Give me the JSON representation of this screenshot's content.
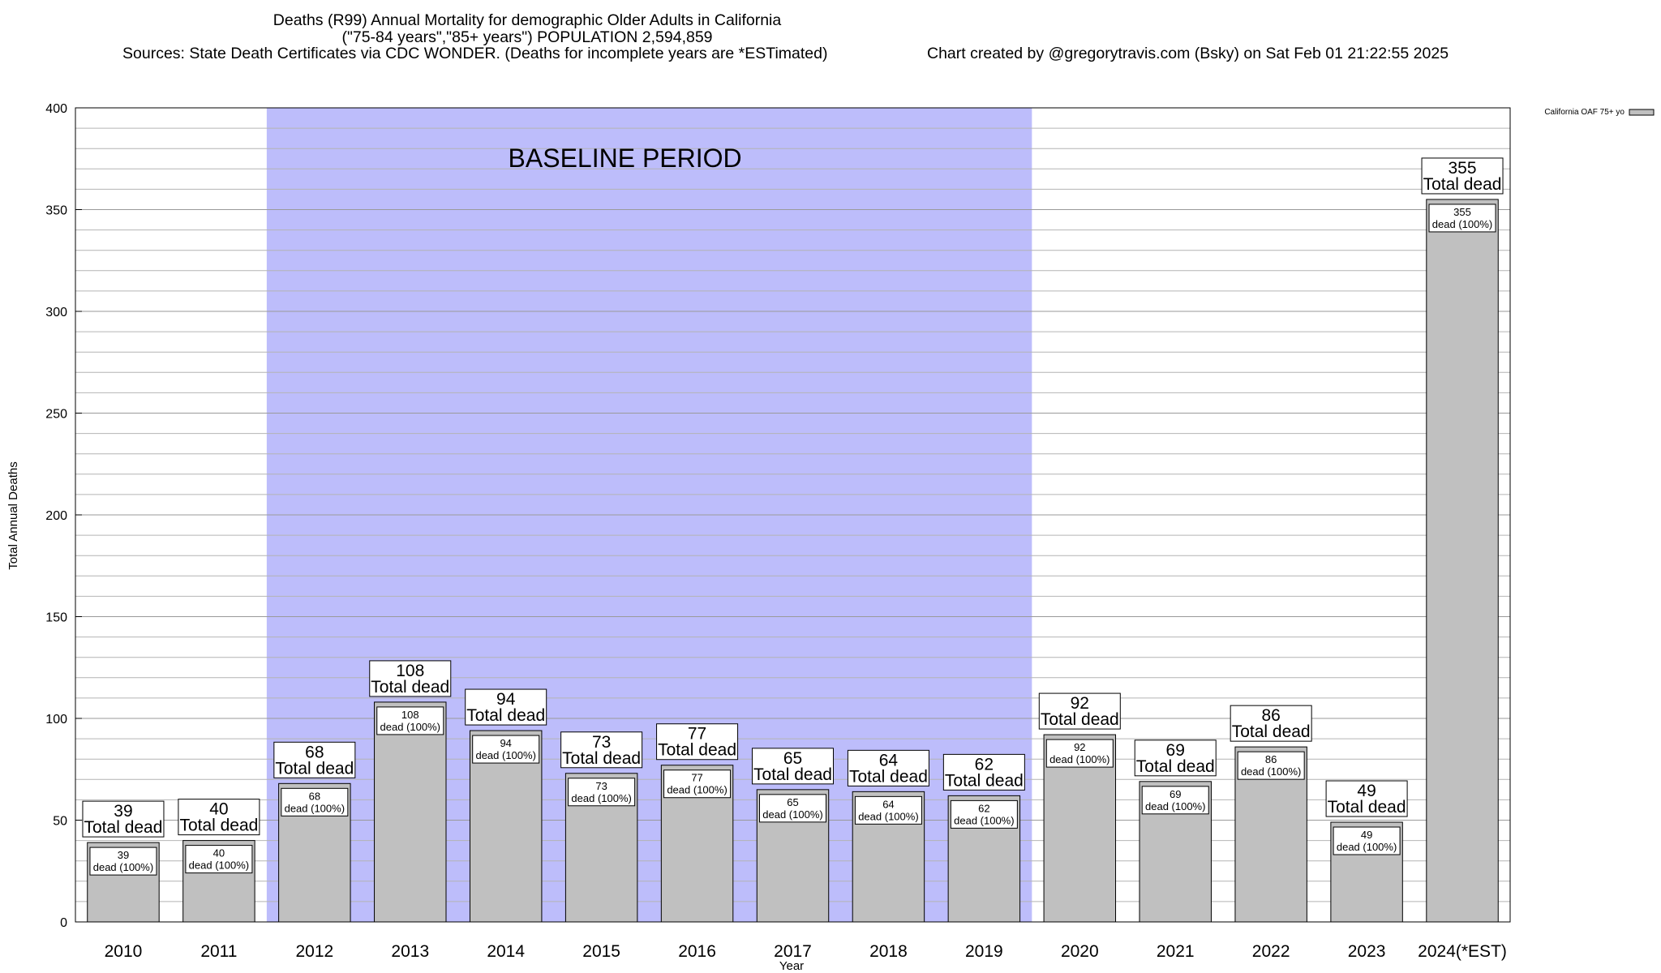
{
  "chart_data": {
    "type": "bar",
    "title_lines": [
      "Deaths (R99) Annual Mortality for demographic Older Adults in California",
      "(\"75-84 years\",\"85+ years\") POPULATION 2,594,859"
    ],
    "sources": "Sources: State Death Certificates via CDC WONDER. (Deaths for incomplete years are *ESTimated)",
    "credit": "Chart created by @gregorytravis.com (Bsky) on Sat Feb 01 21:22:55 2025",
    "xlabel": "Year",
    "ylabel": "Total Annual Deaths",
    "ylim": [
      0,
      400
    ],
    "yticks": [
      0,
      50,
      100,
      150,
      200,
      250,
      300,
      350,
      400
    ],
    "minor_step": 10,
    "grid": true,
    "categories": [
      "2010",
      "2011",
      "2012",
      "2013",
      "2014",
      "2015",
      "2016",
      "2017",
      "2018",
      "2019",
      "2020",
      "2021",
      "2022",
      "2023",
      "2024(*EST)"
    ],
    "series": [
      {
        "name": "California OAF 75+ yo",
        "values": [
          39,
          40,
          68,
          108,
          94,
          73,
          77,
          65,
          64,
          62,
          92,
          69,
          86,
          49,
          355
        ]
      }
    ],
    "total_label_suffix": "Total dead",
    "inner_label_suffix": "dead (100%)",
    "baseline": {
      "label": "BASELINE PERIOD",
      "from": "2012",
      "to": "2019",
      "color": "#bdbdfb"
    },
    "bar_color": "#c0c0c0",
    "legend_position": "top-right"
  }
}
